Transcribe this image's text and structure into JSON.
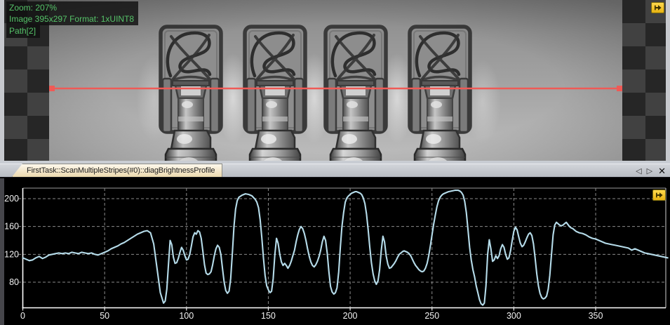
{
  "image_view": {
    "overlay": {
      "line1": "Zoom: 207%",
      "line2": "Image 395x297 Format: 1xUINT8",
      "line3": "Path[2]",
      "text_color": "#55c268"
    },
    "scan_line_color": "#ef5a56",
    "dock_icon_color": "#f0c420"
  },
  "tab_bar": {
    "tab_label": "FirstTask::ScanMultipleStripes(#0)::diagBrightnessProfile",
    "scroll_left_glyph": "◁",
    "scroll_right_glyph": "▷",
    "close_glyph": "✕"
  },
  "chart": {
    "curve_color": "#b5dbe9",
    "background": "#000000",
    "grid_color": "#8a8a8a",
    "axis_color": "#ffffff",
    "label_color": "#f2f2f2"
  },
  "chart_data": {
    "type": "line",
    "title": "FirstTask::ScanMultipleStripes(#0)::diagBrightnessProfile",
    "xlabel": "",
    "ylabel": "",
    "xlim": [
      0,
      395
    ],
    "ylim": [
      44,
      228
    ],
    "xticks": [
      0,
      50,
      100,
      150,
      200,
      250,
      300,
      350
    ],
    "yticks": [
      80,
      120,
      160,
      200
    ],
    "grid": true,
    "legend": false,
    "points": [
      [
        0,
        115
      ],
      [
        2,
        113
      ],
      [
        4,
        111
      ],
      [
        6,
        112
      ],
      [
        8,
        115
      ],
      [
        10,
        117
      ],
      [
        12,
        114
      ],
      [
        14,
        116
      ],
      [
        16,
        119
      ],
      [
        18,
        120
      ],
      [
        20,
        121
      ],
      [
        22,
        122
      ],
      [
        24,
        121
      ],
      [
        26,
        122
      ],
      [
        28,
        121
      ],
      [
        30,
        123
      ],
      [
        32,
        122
      ],
      [
        34,
        121
      ],
      [
        36,
        123
      ],
      [
        38,
        122
      ],
      [
        40,
        121
      ],
      [
        42,
        122
      ],
      [
        44,
        120
      ],
      [
        46,
        119
      ],
      [
        48,
        121
      ],
      [
        50,
        123
      ],
      [
        52,
        125
      ],
      [
        54,
        128
      ],
      [
        56,
        130
      ],
      [
        58,
        132
      ],
      [
        60,
        135
      ],
      [
        62,
        137
      ],
      [
        64,
        140
      ],
      [
        66,
        143
      ],
      [
        68,
        146
      ],
      [
        70,
        149
      ],
      [
        72,
        151
      ],
      [
        74,
        153
      ],
      [
        76,
        154
      ],
      [
        78,
        151
      ],
      [
        80,
        135
      ],
      [
        82,
        100
      ],
      [
        84,
        65
      ],
      [
        86,
        50
      ],
      [
        87,
        53
      ],
      [
        88,
        70
      ],
      [
        89,
        105
      ],
      [
        90,
        140
      ],
      [
        91,
        134
      ],
      [
        92,
        116
      ],
      [
        93,
        107
      ],
      [
        94,
        108
      ],
      [
        95,
        114
      ],
      [
        96,
        123
      ],
      [
        97,
        130
      ],
      [
        98,
        126
      ],
      [
        99,
        118
      ],
      [
        100,
        112
      ],
      [
        101,
        113
      ],
      [
        102,
        120
      ],
      [
        103,
        132
      ],
      [
        104,
        145
      ],
      [
        105,
        151
      ],
      [
        106,
        149
      ],
      [
        107,
        154
      ],
      [
        108,
        152
      ],
      [
        109,
        143
      ],
      [
        110,
        125
      ],
      [
        111,
        105
      ],
      [
        112,
        93
      ],
      [
        113,
        91
      ],
      [
        114,
        92
      ],
      [
        115,
        95
      ],
      [
        116,
        105
      ],
      [
        117,
        118
      ],
      [
        118,
        128
      ],
      [
        119,
        133
      ],
      [
        120,
        130
      ],
      [
        121,
        120
      ],
      [
        122,
        100
      ],
      [
        123,
        80
      ],
      [
        124,
        68
      ],
      [
        125,
        64
      ],
      [
        126,
        67
      ],
      [
        127,
        85
      ],
      [
        128,
        120
      ],
      [
        129,
        160
      ],
      [
        130,
        185
      ],
      [
        131,
        197
      ],
      [
        132,
        202
      ],
      [
        134,
        205
      ],
      [
        136,
        207
      ],
      [
        138,
        206
      ],
      [
        140,
        204
      ],
      [
        142,
        199
      ],
      [
        143,
        195
      ],
      [
        144,
        187
      ],
      [
        145,
        170
      ],
      [
        146,
        145
      ],
      [
        147,
        115
      ],
      [
        148,
        90
      ],
      [
        149,
        75
      ],
      [
        150,
        69
      ],
      [
        151,
        65
      ],
      [
        152,
        67
      ],
      [
        153,
        85
      ],
      [
        154,
        120
      ],
      [
        155,
        143
      ],
      [
        156,
        136
      ],
      [
        157,
        120
      ],
      [
        158,
        109
      ],
      [
        159,
        104
      ],
      [
        160,
        107
      ],
      [
        161,
        104
      ],
      [
        162,
        100
      ],
      [
        163,
        104
      ],
      [
        164,
        110
      ],
      [
        165,
        118
      ],
      [
        166,
        126
      ],
      [
        167,
        138
      ],
      [
        168,
        148
      ],
      [
        169,
        156
      ],
      [
        170,
        160
      ],
      [
        171,
        157
      ],
      [
        172,
        150
      ],
      [
        173,
        140
      ],
      [
        174,
        128
      ],
      [
        175,
        117
      ],
      [
        176,
        109
      ],
      [
        177,
        104
      ],
      [
        178,
        102
      ],
      [
        179,
        105
      ],
      [
        180,
        110
      ],
      [
        181,
        117
      ],
      [
        182,
        126
      ],
      [
        183,
        138
      ],
      [
        184,
        146
      ],
      [
        185,
        140
      ],
      [
        186,
        122
      ],
      [
        187,
        95
      ],
      [
        188,
        74
      ],
      [
        189,
        66
      ],
      [
        190,
        63
      ],
      [
        191,
        65
      ],
      [
        192,
        72
      ],
      [
        193,
        95
      ],
      [
        194,
        130
      ],
      [
        195,
        160
      ],
      [
        196,
        180
      ],
      [
        197,
        195
      ],
      [
        198,
        201
      ],
      [
        199,
        204
      ],
      [
        200,
        206
      ],
      [
        201,
        208
      ],
      [
        202,
        209
      ],
      [
        203,
        210
      ],
      [
        204,
        210
      ],
      [
        205,
        209
      ],
      [
        206,
        208
      ],
      [
        207,
        206
      ],
      [
        208,
        201
      ],
      [
        209,
        193
      ],
      [
        210,
        178
      ],
      [
        211,
        155
      ],
      [
        212,
        130
      ],
      [
        213,
        108
      ],
      [
        214,
        92
      ],
      [
        215,
        82
      ],
      [
        216,
        77
      ],
      [
        217,
        82
      ],
      [
        218,
        98
      ],
      [
        219,
        125
      ],
      [
        220,
        146
      ],
      [
        221,
        138
      ],
      [
        222,
        118
      ],
      [
        223,
        106
      ],
      [
        224,
        100
      ],
      [
        225,
        101
      ],
      [
        226,
        104
      ],
      [
        227,
        107
      ],
      [
        228,
        111
      ],
      [
        229,
        116
      ],
      [
        230,
        120
      ],
      [
        231,
        122
      ],
      [
        232,
        124
      ],
      [
        233,
        125
      ],
      [
        234,
        124
      ],
      [
        235,
        123
      ],
      [
        236,
        121
      ],
      [
        237,
        118
      ],
      [
        238,
        113
      ],
      [
        239,
        108
      ],
      [
        240,
        104
      ],
      [
        241,
        101
      ],
      [
        242,
        98
      ],
      [
        243,
        96
      ],
      [
        244,
        95
      ],
      [
        245,
        96
      ],
      [
        246,
        100
      ],
      [
        247,
        107
      ],
      [
        248,
        118
      ],
      [
        249,
        132
      ],
      [
        250,
        148
      ],
      [
        251,
        163
      ],
      [
        252,
        176
      ],
      [
        253,
        188
      ],
      [
        254,
        197
      ],
      [
        255,
        202
      ],
      [
        256,
        205
      ],
      [
        257,
        207
      ],
      [
        258,
        208
      ],
      [
        260,
        210
      ],
      [
        262,
        211
      ],
      [
        264,
        212
      ],
      [
        266,
        212
      ],
      [
        267,
        211
      ],
      [
        268,
        209
      ],
      [
        269,
        205
      ],
      [
        270,
        196
      ],
      [
        271,
        180
      ],
      [
        272,
        155
      ],
      [
        273,
        130
      ],
      [
        274,
        112
      ],
      [
        275,
        98
      ],
      [
        276,
        88
      ],
      [
        277,
        75
      ],
      [
        278,
        65
      ],
      [
        279,
        55
      ],
      [
        280,
        49
      ],
      [
        281,
        47
      ],
      [
        282,
        50
      ],
      [
        283,
        75
      ],
      [
        284,
        120
      ],
      [
        285,
        141
      ],
      [
        286,
        128
      ],
      [
        287,
        110
      ],
      [
        288,
        112
      ],
      [
        289,
        118
      ],
      [
        290,
        114
      ],
      [
        291,
        118
      ],
      [
        292,
        128
      ],
      [
        293,
        134
      ],
      [
        294,
        130
      ],
      [
        295,
        120
      ],
      [
        296,
        113
      ],
      [
        297,
        115
      ],
      [
        298,
        125
      ],
      [
        299,
        140
      ],
      [
        300,
        153
      ],
      [
        301,
        159
      ],
      [
        302,
        155
      ],
      [
        303,
        145
      ],
      [
        304,
        136
      ],
      [
        305,
        131
      ],
      [
        306,
        133
      ],
      [
        307,
        138
      ],
      [
        308,
        144
      ],
      [
        309,
        149
      ],
      [
        310,
        151
      ],
      [
        311,
        147
      ],
      [
        312,
        135
      ],
      [
        313,
        115
      ],
      [
        314,
        92
      ],
      [
        315,
        75
      ],
      [
        316,
        64
      ],
      [
        317,
        58
      ],
      [
        318,
        56
      ],
      [
        319,
        57
      ],
      [
        320,
        60
      ],
      [
        321,
        70
      ],
      [
        322,
        90
      ],
      [
        323,
        120
      ],
      [
        324,
        148
      ],
      [
        325,
        162
      ],
      [
        326,
        166
      ],
      [
        327,
        164
      ],
      [
        328,
        162
      ],
      [
        329,
        161
      ],
      [
        330,
        162
      ],
      [
        331,
        164
      ],
      [
        332,
        166
      ],
      [
        333,
        163
      ],
      [
        334,
        160
      ],
      [
        335,
        158
      ],
      [
        336,
        157
      ],
      [
        337,
        155
      ],
      [
        338,
        153
      ],
      [
        339,
        152
      ],
      [
        340,
        151
      ],
      [
        342,
        150
      ],
      [
        344,
        148
      ],
      [
        346,
        145
      ],
      [
        348,
        143
      ],
      [
        350,
        142
      ],
      [
        352,
        140
      ],
      [
        354,
        138
      ],
      [
        356,
        136
      ],
      [
        358,
        135
      ],
      [
        360,
        134
      ],
      [
        362,
        133
      ],
      [
        364,
        132
      ],
      [
        366,
        131
      ],
      [
        368,
        130
      ],
      [
        370,
        129
      ],
      [
        372,
        126
      ],
      [
        374,
        128
      ],
      [
        376,
        126
      ],
      [
        378,
        124
      ],
      [
        380,
        122
      ],
      [
        382,
        121
      ],
      [
        384,
        120
      ],
      [
        386,
        119
      ],
      [
        388,
        118
      ],
      [
        390,
        117
      ],
      [
        392,
        116
      ],
      [
        394,
        115
      ]
    ]
  }
}
